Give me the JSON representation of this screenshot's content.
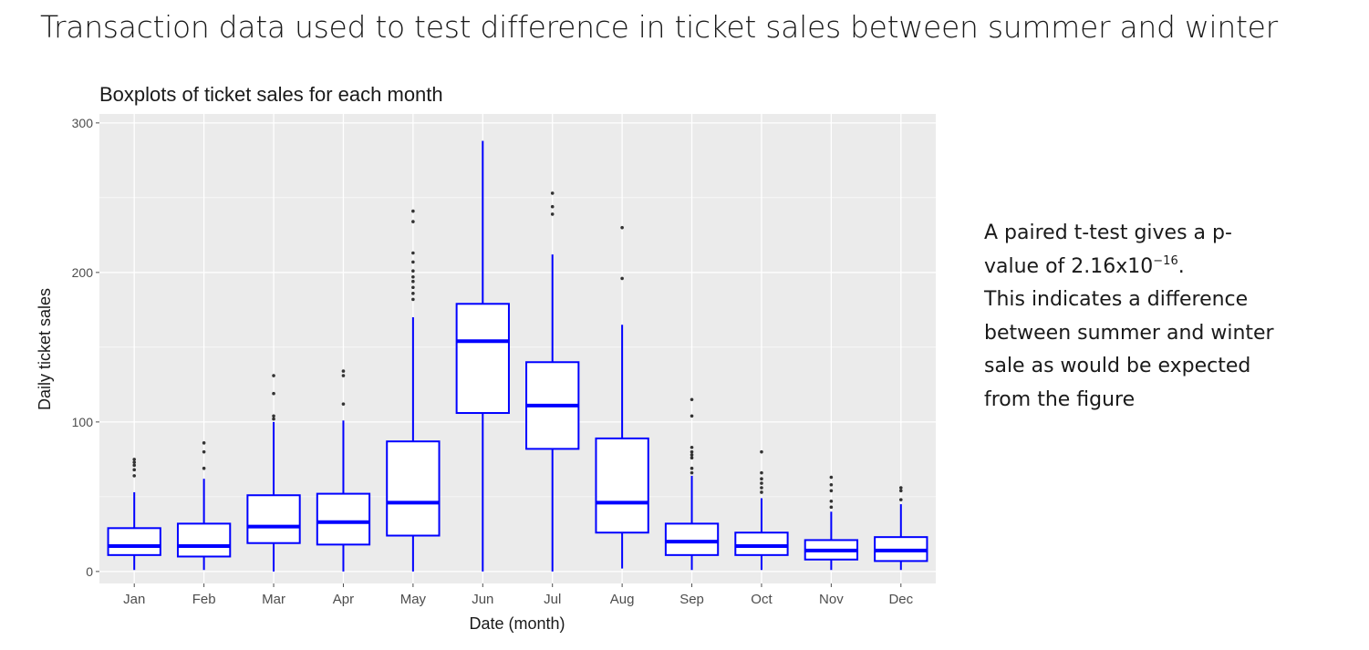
{
  "slide": {
    "title": "Transaction data used to test difference in ticket sales between summer and winter"
  },
  "caption": {
    "line1": "A paired  t-test gives a p-",
    "line2_prefix": "value of 2.16x10",
    "line2_sup": "−16",
    "line2_suffix": ".",
    "line3": "This indicates a difference",
    "line4": "between summer and winter",
    "line5": "sale as would be expected",
    "line6": "from the figure"
  },
  "chart_data": {
    "type": "boxplot",
    "title": "Boxplots of ticket sales for each month",
    "xlabel": "Date (month)",
    "ylabel": "Daily ticket sales",
    "ylim": [
      -8,
      306
    ],
    "yticks": [
      0,
      100,
      200,
      300
    ],
    "grid": true,
    "colors": {
      "box": "#0000ff",
      "panel": "#ebebeb",
      "grid": "#ffffff",
      "outlier": "#333333"
    },
    "categories": [
      "Jan",
      "Feb",
      "Mar",
      "Apr",
      "May",
      "Jun",
      "Jul",
      "Aug",
      "Sep",
      "Oct",
      "Nov",
      "Dec"
    ],
    "boxes": [
      {
        "whisker_low": 1,
        "q1": 11,
        "median": 17,
        "q3": 29,
        "whisker_high": 53,
        "outliers": [
          64,
          68,
          71,
          73,
          75
        ]
      },
      {
        "whisker_low": 1,
        "q1": 10,
        "median": 17,
        "q3": 32,
        "whisker_high": 62,
        "outliers": [
          69,
          80,
          86
        ]
      },
      {
        "whisker_low": 0,
        "q1": 19,
        "median": 30,
        "q3": 51,
        "whisker_high": 100,
        "outliers": [
          102,
          104,
          119,
          131
        ]
      },
      {
        "whisker_low": 0,
        "q1": 18,
        "median": 33,
        "q3": 52,
        "whisker_high": 101,
        "outliers": [
          112,
          131,
          134
        ]
      },
      {
        "whisker_low": 0,
        "q1": 24,
        "median": 46,
        "q3": 87,
        "whisker_high": 170,
        "outliers": [
          182,
          186,
          190,
          194,
          197,
          201,
          207,
          213,
          234,
          241
        ]
      },
      {
        "whisker_low": 0,
        "q1": 106,
        "median": 154,
        "q3": 179,
        "whisker_high": 288,
        "outliers": []
      },
      {
        "whisker_low": 0,
        "q1": 82,
        "median": 111,
        "q3": 140,
        "whisker_high": 212,
        "outliers": [
          239,
          244,
          253
        ]
      },
      {
        "whisker_low": 2,
        "q1": 26,
        "median": 46,
        "q3": 89,
        "whisker_high": 165,
        "outliers": [
          196,
          230
        ]
      },
      {
        "whisker_low": 1,
        "q1": 11,
        "median": 20,
        "q3": 32,
        "whisker_high": 64,
        "outliers": [
          66,
          69,
          76,
          78,
          80,
          83,
          104,
          115
        ]
      },
      {
        "whisker_low": 1,
        "q1": 11,
        "median": 17,
        "q3": 26,
        "whisker_high": 49,
        "outliers": [
          53,
          56,
          59,
          62,
          66,
          80
        ]
      },
      {
        "whisker_low": 1,
        "q1": 8,
        "median": 14,
        "q3": 21,
        "whisker_high": 40,
        "outliers": [
          43,
          47,
          54,
          58,
          63
        ]
      },
      {
        "whisker_low": 1,
        "q1": 7,
        "median": 14,
        "q3": 23,
        "whisker_high": 45,
        "outliers": [
          48,
          54,
          56
        ]
      }
    ]
  }
}
